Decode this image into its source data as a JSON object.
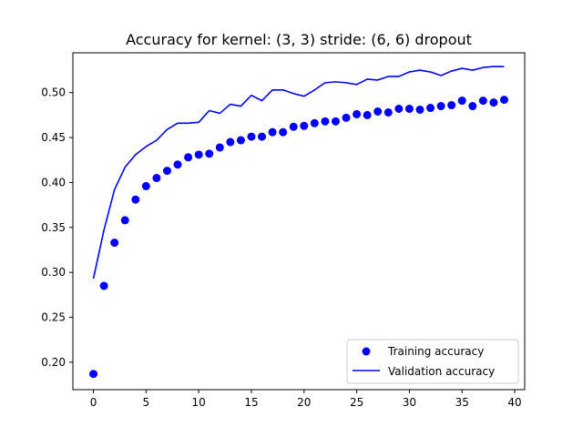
{
  "chart_data": {
    "type": "scatter",
    "title": "Accuracy for kernel: (3, 3) stride: (6, 6) dropout",
    "xlabel": "",
    "ylabel": "",
    "xlim": [
      -1.95,
      40.95
    ],
    "ylim": [
      0.1695,
      0.5443
    ],
    "x_ticks": [
      0,
      5,
      10,
      15,
      20,
      25,
      30,
      35,
      40
    ],
    "x_tick_labels": [
      "0",
      "5",
      "10",
      "15",
      "20",
      "25",
      "30",
      "35",
      "40"
    ],
    "y_ticks": [
      0.2,
      0.25,
      0.3,
      0.35,
      0.4,
      0.45,
      0.5
    ],
    "y_tick_labels": [
      "0.20",
      "0.25",
      "0.30",
      "0.35",
      "0.40",
      "0.45",
      "0.50"
    ],
    "grid": false,
    "legend_position": "lower-right",
    "series": [
      {
        "name": "Training accuracy",
        "kind": "markers",
        "color": "#0000ff",
        "x": [
          0,
          1,
          2,
          3,
          4,
          5,
          6,
          7,
          8,
          9,
          10,
          11,
          12,
          13,
          14,
          15,
          16,
          17,
          18,
          19,
          20,
          21,
          22,
          23,
          24,
          25,
          26,
          27,
          28,
          29,
          30,
          31,
          32,
          33,
          34,
          35,
          36,
          37,
          38,
          39
        ],
        "values": [
          0.187,
          0.285,
          0.333,
          0.358,
          0.381,
          0.396,
          0.405,
          0.413,
          0.42,
          0.428,
          0.431,
          0.432,
          0.439,
          0.445,
          0.447,
          0.451,
          0.451,
          0.456,
          0.456,
          0.462,
          0.463,
          0.466,
          0.468,
          0.468,
          0.472,
          0.476,
          0.475,
          0.479,
          0.478,
          0.482,
          0.482,
          0.481,
          0.483,
          0.485,
          0.486,
          0.491,
          0.485,
          0.491,
          0.489,
          0.492
        ]
      },
      {
        "name": "Validation accuracy",
        "kind": "line",
        "color": "#0000ff",
        "x": [
          0,
          1,
          2,
          3,
          4,
          5,
          6,
          7,
          8,
          9,
          10,
          11,
          12,
          13,
          14,
          15,
          16,
          17,
          18,
          19,
          20,
          21,
          22,
          23,
          24,
          25,
          26,
          27,
          28,
          29,
          30,
          31,
          32,
          33,
          34,
          35,
          36,
          37,
          38,
          39
        ],
        "values": [
          0.293,
          0.347,
          0.392,
          0.417,
          0.431,
          0.44,
          0.447,
          0.459,
          0.466,
          0.466,
          0.467,
          0.48,
          0.477,
          0.487,
          0.485,
          0.497,
          0.491,
          0.503,
          0.503,
          0.499,
          0.496,
          0.503,
          0.511,
          0.512,
          0.511,
          0.509,
          0.515,
          0.514,
          0.518,
          0.518,
          0.523,
          0.525,
          0.523,
          0.519,
          0.524,
          0.527,
          0.525,
          0.528,
          0.529,
          0.529
        ]
      }
    ]
  }
}
